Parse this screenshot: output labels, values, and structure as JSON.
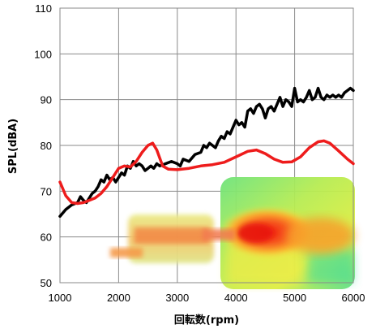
{
  "chart_data": {
    "type": "line",
    "title": "",
    "xlabel": "回転数(rpm)",
    "ylabel": "SPL(dBA)",
    "xlim": [
      1000,
      6000
    ],
    "ylim": [
      50,
      110
    ],
    "x_ticks": [
      1000,
      2000,
      3000,
      4000,
      5000,
      6000
    ],
    "y_ticks": [
      50,
      60,
      70,
      80,
      90,
      100,
      110
    ],
    "grid": true,
    "legend": "none",
    "series": [
      {
        "color": "#000000",
        "points": [
          [
            1000,
            64.5
          ],
          [
            1100,
            66
          ],
          [
            1200,
            67
          ],
          [
            1300,
            67.5
          ],
          [
            1350,
            68.8
          ],
          [
            1400,
            68
          ],
          [
            1450,
            67.5
          ],
          [
            1500,
            68.5
          ],
          [
            1550,
            69.5
          ],
          [
            1600,
            70
          ],
          [
            1650,
            71
          ],
          [
            1700,
            72.5
          ],
          [
            1750,
            72
          ],
          [
            1800,
            73.5
          ],
          [
            1850,
            72.5
          ],
          [
            1900,
            73
          ],
          [
            1950,
            72
          ],
          [
            2000,
            73
          ],
          [
            2050,
            74
          ],
          [
            2100,
            73.5
          ],
          [
            2150,
            75.5
          ],
          [
            2200,
            75
          ],
          [
            2250,
            76.5
          ],
          [
            2300,
            75.5
          ],
          [
            2350,
            76
          ],
          [
            2400,
            75.5
          ],
          [
            2450,
            74.5
          ],
          [
            2500,
            75
          ],
          [
            2550,
            75.5
          ],
          [
            2600,
            75
          ],
          [
            2650,
            76
          ],
          [
            2700,
            75.5
          ],
          [
            2800,
            76
          ],
          [
            2900,
            76.5
          ],
          [
            3000,
            76
          ],
          [
            3050,
            75.5
          ],
          [
            3100,
            77
          ],
          [
            3200,
            76.5
          ],
          [
            3300,
            78
          ],
          [
            3400,
            78.5
          ],
          [
            3450,
            80
          ],
          [
            3500,
            79.5
          ],
          [
            3550,
            80.5
          ],
          [
            3600,
            80
          ],
          [
            3650,
            79.5
          ],
          [
            3700,
            81
          ],
          [
            3750,
            82
          ],
          [
            3800,
            81.5
          ],
          [
            3850,
            83
          ],
          [
            3900,
            82.5
          ],
          [
            3950,
            84
          ],
          [
            4000,
            85.5
          ],
          [
            4050,
            84.5
          ],
          [
            4100,
            85
          ],
          [
            4150,
            84
          ],
          [
            4200,
            87.5
          ],
          [
            4250,
            88
          ],
          [
            4300,
            87
          ],
          [
            4350,
            88.5
          ],
          [
            4400,
            89
          ],
          [
            4450,
            88
          ],
          [
            4500,
            86
          ],
          [
            4550,
            88
          ],
          [
            4600,
            88.5
          ],
          [
            4650,
            87.5
          ],
          [
            4700,
            89
          ],
          [
            4750,
            90.5
          ],
          [
            4800,
            88.5
          ],
          [
            4850,
            90
          ],
          [
            4900,
            89.5
          ],
          [
            4950,
            88.5
          ],
          [
            5000,
            92.5
          ],
          [
            5050,
            89.5
          ],
          [
            5100,
            90
          ],
          [
            5150,
            89.5
          ],
          [
            5200,
            90.5
          ],
          [
            5250,
            92
          ],
          [
            5300,
            90
          ],
          [
            5350,
            90.5
          ],
          [
            5400,
            92.5
          ],
          [
            5450,
            90.5
          ],
          [
            5500,
            90
          ],
          [
            5550,
            91
          ],
          [
            5600,
            90.5
          ],
          [
            5650,
            91
          ],
          [
            5700,
            90.5
          ],
          [
            5750,
            91
          ],
          [
            5800,
            90.5
          ],
          [
            5850,
            91.5
          ],
          [
            5900,
            92
          ],
          [
            5950,
            92.5
          ],
          [
            6000,
            92
          ]
        ]
      },
      {
        "color": "#ee1c1c",
        "points": [
          [
            1000,
            72
          ],
          [
            1100,
            69
          ],
          [
            1200,
            67.5
          ],
          [
            1300,
            67.3
          ],
          [
            1400,
            67.5
          ],
          [
            1500,
            68
          ],
          [
            1600,
            68.5
          ],
          [
            1700,
            69.5
          ],
          [
            1800,
            71
          ],
          [
            1900,
            73
          ],
          [
            2000,
            75
          ],
          [
            2100,
            75.5
          ],
          [
            2200,
            75.3
          ],
          [
            2300,
            76.5
          ],
          [
            2400,
            78.5
          ],
          [
            2500,
            80
          ],
          [
            2580,
            80.5
          ],
          [
            2650,
            79
          ],
          [
            2750,
            75.5
          ],
          [
            2850,
            74.8
          ],
          [
            3000,
            74.7
          ],
          [
            3200,
            75
          ],
          [
            3400,
            75.5
          ],
          [
            3600,
            75.8
          ],
          [
            3800,
            76.3
          ],
          [
            4000,
            77.5
          ],
          [
            4200,
            78.7
          ],
          [
            4350,
            79
          ],
          [
            4500,
            78.2
          ],
          [
            4650,
            77
          ],
          [
            4800,
            76.3
          ],
          [
            4950,
            76.4
          ],
          [
            5100,
            77.5
          ],
          [
            5250,
            79.5
          ],
          [
            5400,
            80.8
          ],
          [
            5500,
            81
          ],
          [
            5600,
            80.5
          ],
          [
            5750,
            78.8
          ],
          [
            5900,
            77
          ],
          [
            6000,
            76
          ]
        ]
      }
    ]
  },
  "inset_image": {
    "description_icon": "fan-sound-intensity-map-icon",
    "colors": [
      "#4fdd8a",
      "#9ee84a",
      "#f2ea3a",
      "#ffb027",
      "#f43b1e"
    ]
  }
}
